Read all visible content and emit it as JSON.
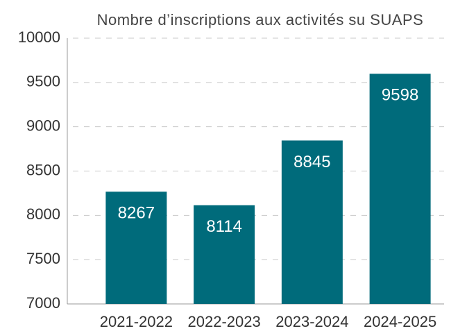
{
  "chart_data": {
    "type": "bar",
    "title": "Nombre d’inscriptions aux activités su SUAPS",
    "categories": [
      "2021-2022",
      "2022-2023",
      "2023-2024",
      "2024-2025"
    ],
    "values": [
      8267,
      8114,
      8845,
      9598
    ],
    "color": "#006b7b",
    "ylim": [
      7000,
      10000
    ],
    "yticks": [
      7000,
      7500,
      8000,
      8500,
      9000,
      9500,
      10000
    ],
    "grid": true
  }
}
